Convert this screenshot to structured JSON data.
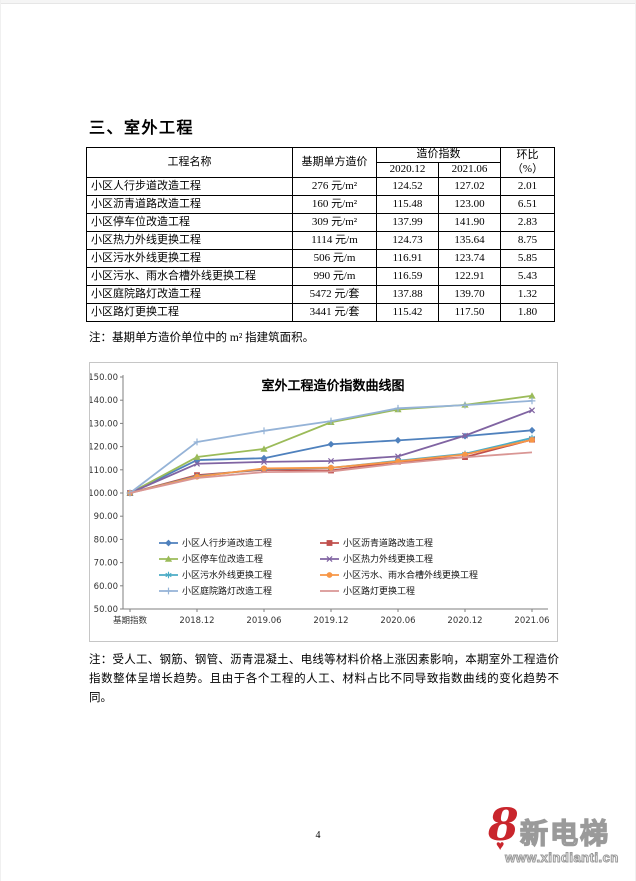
{
  "heading": "三、室外工程",
  "table": {
    "col_headers": {
      "name": "工程名称",
      "base_cost": "基期单方造价",
      "index_group": "造价指数",
      "index_cols": [
        "2020.12",
        "2021.06"
      ],
      "mom_line1": "环比",
      "mom_line2": "（%）"
    },
    "rows": [
      [
        "小区人行步道改造工程",
        "276 元/m²",
        "124.52",
        "127.02",
        "2.01"
      ],
      [
        "小区沥青道路改造工程",
        "160 元/m²",
        "115.48",
        "123.00",
        "6.51"
      ],
      [
        "小区停车位改造工程",
        "309 元/m²",
        "137.99",
        "141.90",
        "2.83"
      ],
      [
        "小区热力外线更换工程",
        "1114 元/m",
        "124.73",
        "135.64",
        "8.75"
      ],
      [
        "小区污水外线更换工程",
        "506 元/m",
        "116.91",
        "123.74",
        "5.85"
      ],
      [
        "小区污水、雨水合槽外线更换工程",
        "990 元/m",
        "116.59",
        "122.91",
        "5.43"
      ],
      [
        "小区庭院路灯改造工程",
        "5472 元/套",
        "137.88",
        "139.70",
        "1.32"
      ],
      [
        "小区路灯更换工程",
        "3441 元/套",
        "115.42",
        "117.50",
        "1.80"
      ]
    ]
  },
  "table_note": "注：基期单方造价单位中的 m² 指建筑面积。",
  "chart_data": {
    "type": "line",
    "title": "室外工程造价指数曲线图",
    "categories": [
      "基期指数",
      "2018.12",
      "2019.06",
      "2019.12",
      "2020.06",
      "2020.12",
      "2021.06"
    ],
    "ylim": [
      50,
      150
    ],
    "ytick_step": 10,
    "grid": false,
    "legend_position": "inside bottom-left, 2 columns",
    "series": [
      {
        "name": "小区人行步道改造工程",
        "color": "#4F81BD",
        "marker": "diamond",
        "values": [
          100,
          114.2,
          115.0,
          121.0,
          122.7,
          124.52,
          127.02
        ]
      },
      {
        "name": "小区沥青道路改造工程",
        "color": "#C0504D",
        "marker": "square",
        "values": [
          100,
          107.7,
          110.0,
          109.7,
          113.5,
          115.48,
          123.0
        ]
      },
      {
        "name": "小区停车位改造工程",
        "color": "#9BBB59",
        "marker": "triangle",
        "values": [
          100,
          115.5,
          119.0,
          130.5,
          136.0,
          137.99,
          141.9
        ]
      },
      {
        "name": "小区热力外线更换工程",
        "color": "#8064A2",
        "marker": "x",
        "values": [
          100,
          112.6,
          113.4,
          113.8,
          115.8,
          124.73,
          135.64
        ]
      },
      {
        "name": "小区污水外线更换工程",
        "color": "#4BACC6",
        "marker": "asterisk",
        "values": [
          100,
          107.2,
          110.4,
          110.8,
          113.9,
          116.91,
          123.74
        ]
      },
      {
        "name": "小区污水、雨水合槽外线更换工程",
        "color": "#F79646",
        "marker": "circle",
        "values": [
          100,
          107.0,
          110.6,
          110.9,
          113.6,
          116.59,
          122.91
        ]
      },
      {
        "name": "小区庭院路灯改造工程",
        "color": "#95B3D7",
        "marker": "plus",
        "values": [
          100,
          122.0,
          126.8,
          131.0,
          136.5,
          137.88,
          139.7
        ]
      },
      {
        "name": "小区路灯更换工程",
        "color": "#D99694",
        "marker": "none",
        "values": [
          100,
          106.5,
          109.0,
          109.3,
          112.7,
          115.42,
          117.5
        ]
      }
    ]
  },
  "analysis_note": "注：受人工、钢筋、钢管、沥青混凝土、电线等材料价格上涨因素影响，本期室外工程造价指数整体呈增长趋势。且由于各个工程的人工、材料占比不同导致指数曲线的变化趋势不同。",
  "page_number": "4",
  "logo": {
    "mark": "8",
    "brand": "新电梯",
    "url": "www.xindianti.cn"
  }
}
